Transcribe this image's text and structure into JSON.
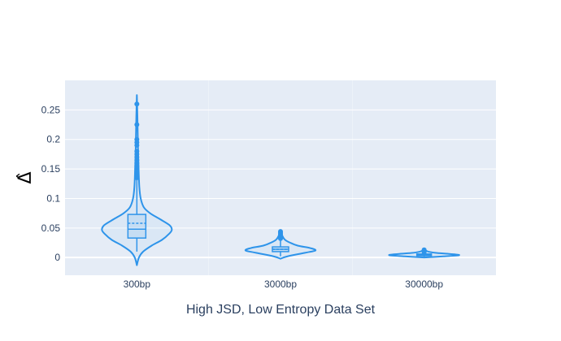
{
  "chart_data": {
    "type": "violin",
    "xlabel": "High JSD, Low Entropy Data Set",
    "ylabel": "Δ̂",
    "ylim": [
      -0.03,
      0.3
    ],
    "yticks": [
      0,
      0.05,
      0.1,
      0.15,
      0.2,
      0.25
    ],
    "ytick_labels": [
      "0",
      "0.05",
      "0.1",
      "0.15",
      "0.2",
      "0.25"
    ],
    "grid": true,
    "colors": {
      "series": "#2e94ea",
      "plot_bg": "#e5ecf6",
      "grid": "#ffffff"
    },
    "categories": [
      "300bp",
      "3000bp",
      "30000bp"
    ],
    "series": [
      {
        "category": "300bp",
        "median": 0.048,
        "mean": 0.058,
        "q1": 0.033,
        "q3": 0.073,
        "whisker_low": 0.01,
        "whisker_high": 0.133,
        "outliers": [
          0.135,
          0.14,
          0.145,
          0.15,
          0.155,
          0.16,
          0.165,
          0.17,
          0.175,
          0.18,
          0.19,
          0.195,
          0.2,
          0.225,
          0.26
        ],
        "density": [
          [
            -0.013,
            0.0
          ],
          [
            0.0,
            0.06
          ],
          [
            0.01,
            0.18
          ],
          [
            0.02,
            0.42
          ],
          [
            0.03,
            0.72
          ],
          [
            0.04,
            0.92
          ],
          [
            0.047,
            1.0
          ],
          [
            0.055,
            0.93
          ],
          [
            0.065,
            0.66
          ],
          [
            0.075,
            0.38
          ],
          [
            0.085,
            0.2
          ],
          [
            0.1,
            0.11
          ],
          [
            0.12,
            0.07
          ],
          [
            0.15,
            0.05
          ],
          [
            0.18,
            0.035
          ],
          [
            0.21,
            0.025
          ],
          [
            0.24,
            0.015
          ],
          [
            0.275,
            0.0
          ]
        ]
      },
      {
        "category": "3000bp",
        "median": 0.014,
        "mean": 0.014,
        "q1": 0.01,
        "q3": 0.018,
        "whisker_low": 0.002,
        "whisker_high": 0.03,
        "outliers": [
          0.032,
          0.035,
          0.038,
          0.04,
          0.042,
          0.044
        ],
        "density": [
          [
            -0.002,
            0.0
          ],
          [
            0.002,
            0.2
          ],
          [
            0.008,
            0.7
          ],
          [
            0.012,
            1.0
          ],
          [
            0.016,
            0.85
          ],
          [
            0.02,
            0.5
          ],
          [
            0.025,
            0.28
          ],
          [
            0.03,
            0.13
          ],
          [
            0.036,
            0.06
          ],
          [
            0.046,
            0.0
          ]
        ]
      },
      {
        "category": "30000bp",
        "median": 0.004,
        "mean": 0.004,
        "q1": 0.003,
        "q3": 0.006,
        "whisker_low": 0.001,
        "whisker_high": 0.008,
        "outliers": [
          0.009,
          0.01,
          0.011,
          0.012,
          0.013
        ],
        "density": [
          [
            0.0,
            0.0
          ],
          [
            0.002,
            0.55
          ],
          [
            0.004,
            1.0
          ],
          [
            0.006,
            0.75
          ],
          [
            0.008,
            0.32
          ],
          [
            0.01,
            0.12
          ],
          [
            0.013,
            0.0
          ]
        ]
      }
    ]
  }
}
